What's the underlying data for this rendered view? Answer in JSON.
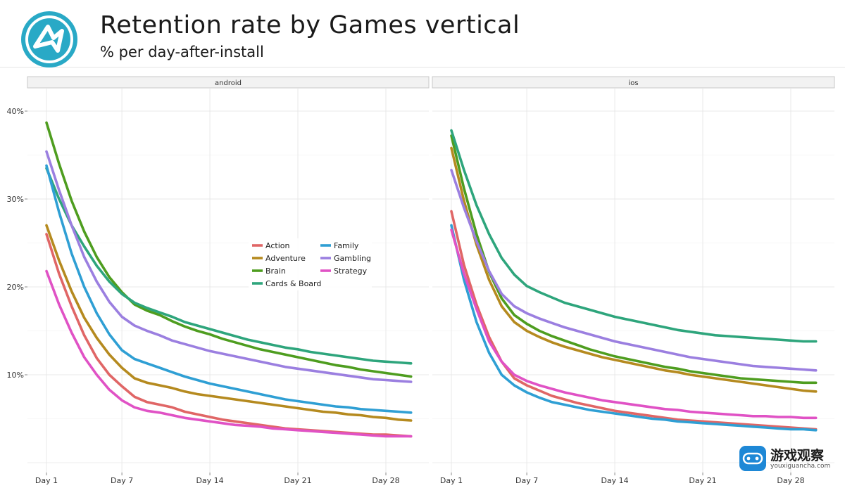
{
  "header": {
    "title": "Retention rate by Games vertical",
    "subtitle": "% per day-after-install"
  },
  "watermark": {
    "name": "游戏观察",
    "url": "youxiguancha.com"
  },
  "colors": {
    "Action": "#e06666",
    "Adventure": "#b58a1f",
    "Brain": "#4e9d1f",
    "Cards & Board": "#2ea57c",
    "Family": "#2f9fd4",
    "Gambling": "#9b7fe0",
    "Strategy": "#e052c5"
  },
  "chart_data": {
    "type": "line",
    "title": "Retention rate by Games vertical",
    "subtitle": "% per day-after-install",
    "xlabel": "",
    "ylabel": "",
    "x": [
      1,
      2,
      3,
      4,
      5,
      6,
      7,
      8,
      9,
      10,
      11,
      12,
      13,
      14,
      15,
      16,
      17,
      18,
      19,
      20,
      21,
      22,
      23,
      24,
      25,
      26,
      27,
      28,
      29,
      30
    ],
    "x_ticks": [
      1,
      7,
      14,
      21,
      28
    ],
    "x_tick_labels": [
      "Day 1",
      "Day 7",
      "Day 14",
      "Day 21",
      "Day 28"
    ],
    "xlim": [
      0.5,
      31.5
    ],
    "ylim": [
      0,
      41
    ],
    "y_ticks": [
      10,
      20,
      30,
      40
    ],
    "y_tick_labels": [
      "10%",
      "20%",
      "30%",
      "40%"
    ],
    "grid": true,
    "legend": {
      "placement": "inside-center",
      "columns": 2
    },
    "panels": [
      {
        "name": "android",
        "series": [
          {
            "name": "Action",
            "values": [
              26.0,
              21.5,
              17.8,
              14.5,
              11.9,
              10.0,
              8.7,
              7.5,
              6.9,
              6.6,
              6.3,
              5.8,
              5.5,
              5.2,
              4.9,
              4.7,
              4.5,
              4.3,
              4.1,
              3.9,
              3.8,
              3.7,
              3.6,
              3.5,
              3.4,
              3.3,
              3.2,
              3.2,
              3.1,
              3.0
            ]
          },
          {
            "name": "Adventure",
            "values": [
              27.0,
              23.0,
              19.5,
              16.5,
              14.2,
              12.3,
              10.8,
              9.6,
              9.1,
              8.8,
              8.5,
              8.1,
              7.8,
              7.6,
              7.4,
              7.2,
              7.0,
              6.8,
              6.6,
              6.4,
              6.2,
              6.0,
              5.8,
              5.7,
              5.5,
              5.4,
              5.2,
              5.1,
              4.9,
              4.8
            ]
          },
          {
            "name": "Brain",
            "values": [
              38.7,
              34.0,
              29.8,
              26.3,
              23.4,
              21.1,
              19.4,
              18.0,
              17.3,
              16.8,
              16.1,
              15.5,
              15.0,
              14.6,
              14.1,
              13.7,
              13.3,
              12.9,
              12.6,
              12.3,
              12.0,
              11.7,
              11.4,
              11.1,
              10.9,
              10.6,
              10.4,
              10.2,
              10.0,
              9.8
            ]
          },
          {
            "name": "Cards & Board",
            "values": [
              33.5,
              30.0,
              27.0,
              24.6,
              22.4,
              20.6,
              19.2,
              18.2,
              17.6,
              17.1,
              16.6,
              16.0,
              15.6,
              15.2,
              14.8,
              14.4,
              14.0,
              13.7,
              13.4,
              13.1,
              12.9,
              12.6,
              12.4,
              12.2,
              12.0,
              11.8,
              11.6,
              11.5,
              11.4,
              11.3
            ]
          },
          {
            "name": "Family",
            "values": [
              33.8,
              28.5,
              23.8,
              20.0,
              17.0,
              14.6,
              12.8,
              11.8,
              11.3,
              10.8,
              10.3,
              9.8,
              9.4,
              9.0,
              8.7,
              8.4,
              8.1,
              7.8,
              7.5,
              7.2,
              7.0,
              6.8,
              6.6,
              6.4,
              6.3,
              6.1,
              6.0,
              5.9,
              5.8,
              5.7
            ]
          },
          {
            "name": "Gambling",
            "values": [
              35.4,
              31.0,
              27.0,
              23.4,
              20.6,
              18.3,
              16.6,
              15.6,
              15.0,
              14.5,
              13.9,
              13.5,
              13.1,
              12.7,
              12.4,
              12.1,
              11.8,
              11.5,
              11.2,
              10.9,
              10.7,
              10.5,
              10.3,
              10.1,
              9.9,
              9.7,
              9.5,
              9.4,
              9.3,
              9.2
            ]
          },
          {
            "name": "Strategy",
            "values": [
              21.8,
              18.0,
              14.8,
              12.0,
              10.0,
              8.3,
              7.1,
              6.3,
              5.9,
              5.7,
              5.4,
              5.1,
              4.9,
              4.7,
              4.5,
              4.3,
              4.2,
              4.1,
              3.9,
              3.8,
              3.7,
              3.6,
              3.5,
              3.4,
              3.3,
              3.2,
              3.1,
              3.0,
              3.0,
              3.0
            ]
          }
        ]
      },
      {
        "name": "ios",
        "series": [
          {
            "name": "Action",
            "values": [
              28.6,
              22.5,
              18.0,
              14.3,
              11.5,
              9.6,
              8.8,
              8.2,
              7.6,
              7.2,
              6.8,
              6.5,
              6.2,
              5.9,
              5.7,
              5.5,
              5.3,
              5.1,
              4.9,
              4.8,
              4.7,
              4.6,
              4.5,
              4.4,
              4.3,
              4.2,
              4.1,
              4.0,
              3.9,
              3.8
            ]
          },
          {
            "name": "Adventure",
            "values": [
              35.8,
              29.8,
              24.8,
              20.8,
              17.8,
              16.0,
              15.0,
              14.3,
              13.7,
              13.2,
              12.8,
              12.4,
              12.0,
              11.7,
              11.4,
              11.1,
              10.8,
              10.5,
              10.3,
              10.0,
              9.8,
              9.6,
              9.4,
              9.2,
              9.0,
              8.8,
              8.6,
              8.4,
              8.2,
              8.1
            ]
          },
          {
            "name": "Brain",
            "values": [
              37.2,
              31.2,
              26.0,
              21.7,
              18.7,
              16.8,
              15.8,
              15.0,
              14.4,
              13.9,
              13.4,
              12.9,
              12.5,
              12.1,
              11.8,
              11.5,
              11.2,
              10.9,
              10.7,
              10.4,
              10.2,
              10.0,
              9.8,
              9.6,
              9.5,
              9.4,
              9.3,
              9.2,
              9.1,
              9.1
            ]
          },
          {
            "name": "Cards & Board",
            "values": [
              37.8,
              33.3,
              29.3,
              26.0,
              23.3,
              21.4,
              20.1,
              19.4,
              18.8,
              18.2,
              17.8,
              17.4,
              17.0,
              16.6,
              16.3,
              16.0,
              15.7,
              15.4,
              15.1,
              14.9,
              14.7,
              14.5,
              14.4,
              14.3,
              14.2,
              14.1,
              14.0,
              13.9,
              13.8,
              13.8
            ]
          },
          {
            "name": "Family",
            "values": [
              27.0,
              20.8,
              16.0,
              12.5,
              10.0,
              8.8,
              8.0,
              7.4,
              6.9,
              6.6,
              6.3,
              6.0,
              5.8,
              5.6,
              5.4,
              5.2,
              5.0,
              4.9,
              4.7,
              4.6,
              4.5,
              4.4,
              4.3,
              4.2,
              4.1,
              4.0,
              3.9,
              3.8,
              3.8,
              3.7
            ]
          },
          {
            "name": "Gambling",
            "values": [
              33.3,
              29.0,
              25.2,
              21.8,
              19.2,
              17.8,
              17.0,
              16.4,
              15.9,
              15.4,
              15.0,
              14.6,
              14.2,
              13.8,
              13.5,
              13.2,
              12.9,
              12.6,
              12.3,
              12.0,
              11.8,
              11.6,
              11.4,
              11.2,
              11.0,
              10.9,
              10.8,
              10.7,
              10.6,
              10.5
            ]
          },
          {
            "name": "Strategy",
            "values": [
              26.5,
              21.5,
              17.5,
              13.8,
              11.5,
              10.0,
              9.3,
              8.8,
              8.4,
              8.0,
              7.7,
              7.4,
              7.1,
              6.9,
              6.7,
              6.5,
              6.3,
              6.1,
              6.0,
              5.8,
              5.7,
              5.6,
              5.5,
              5.4,
              5.3,
              5.3,
              5.2,
              5.2,
              5.1,
              5.1
            ]
          }
        ]
      }
    ]
  }
}
